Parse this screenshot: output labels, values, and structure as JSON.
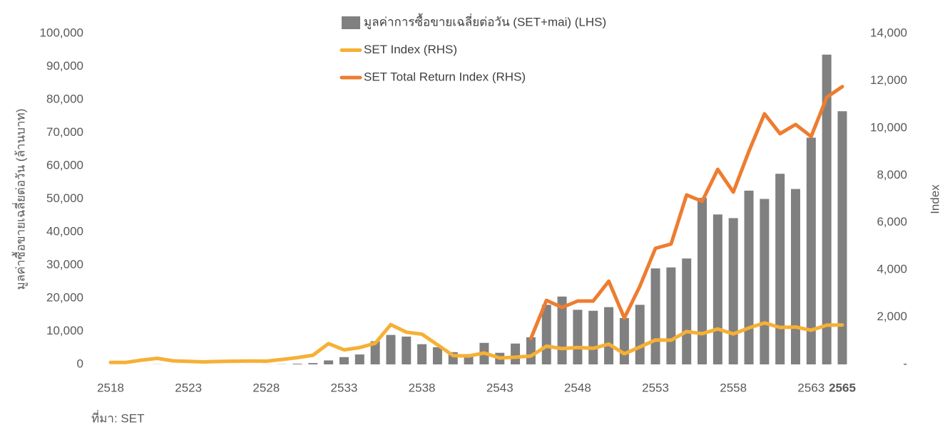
{
  "chart_data": {
    "type": "bar_line",
    "categories": [
      "2518",
      null,
      null,
      null,
      null,
      "2523",
      null,
      null,
      null,
      null,
      "2528",
      null,
      null,
      null,
      null,
      "2533",
      null,
      null,
      null,
      null,
      "2538",
      null,
      null,
      null,
      null,
      "2543",
      null,
      null,
      null,
      null,
      "2548",
      null,
      null,
      null,
      null,
      "2553",
      null,
      null,
      null,
      null,
      "2558",
      null,
      null,
      null,
      null,
      "2563",
      null,
      "2565"
    ],
    "series": [
      {
        "name": "มูลค่าการซื้อขายเฉลี่ยต่อวัน (SET+mai) (LHS)",
        "type": "bar",
        "color": "#808080",
        "values": [
          5,
          4,
          20,
          40,
          15,
          10,
          8,
          12,
          20,
          18,
          25,
          60,
          200,
          400,
          1200,
          2200,
          3000,
          7000,
          8900,
          8400,
          6100,
          5200,
          3700,
          3100,
          6500,
          3500,
          6300,
          8200,
          18000,
          20500,
          16500,
          16200,
          17300,
          14000,
          18000,
          29000,
          29300,
          32000,
          50300,
          45300,
          44200,
          52500,
          50000,
          57600,
          53000,
          68500,
          93600,
          76500
        ]
      },
      {
        "name": "SET Index (RHS)",
        "type": "line",
        "axis": "y2",
        "color": "#f6b035",
        "values": [
          85,
          83,
          180,
          257,
          150,
          125,
          105,
          124,
          135,
          142,
          135,
          207,
          285,
          387,
          879,
          613,
          711,
          893,
          1683,
          1360,
          1280,
          832,
          372,
          356,
          482,
          270,
          304,
          356,
          772,
          668,
          713,
          680,
          858,
          450,
          735,
          1033,
          1025,
          1392,
          1299,
          1498,
          1288,
          1543,
          1754,
          1564,
          1580,
          1449,
          1658,
          1669
        ]
      },
      {
        "name": "SET Total Return Index (RHS)",
        "type": "line",
        "axis": "y2",
        "color": "#ed7d31",
        "values": [
          null,
          null,
          null,
          null,
          null,
          null,
          null,
          null,
          null,
          null,
          null,
          null,
          null,
          null,
          null,
          null,
          null,
          null,
          null,
          null,
          null,
          null,
          null,
          null,
          null,
          null,
          null,
          1100,
          2710,
          2410,
          2680,
          2680,
          3520,
          1960,
          3310,
          4910,
          5090,
          7170,
          6900,
          8250,
          7290,
          9010,
          10600,
          9760,
          10150,
          9640,
          11300,
          11750
        ]
      }
    ],
    "ylabel": "มูลค่าซื้อขายเฉลี่ยต่อวัน (ล้านบาท)",
    "y2label": "Index",
    "ylim": [
      0,
      100000
    ],
    "yticks": [
      0,
      {
        "value": 10000,
        "label": "10,000"
      },
      {
        "value": 20000,
        "label": "20,000"
      },
      {
        "value": 30000,
        "label": "30,000"
      },
      {
        "value": 40000,
        "label": "40,000"
      },
      {
        "value": 50000,
        "label": "50,000"
      },
      {
        "value": 60000,
        "label": "60,000"
      },
      {
        "value": 70000,
        "label": "70,000"
      },
      {
        "value": 80000,
        "label": "80,000"
      },
      {
        "value": 90000,
        "label": "90,000"
      },
      {
        "value": 100000,
        "label": "100,000"
      }
    ],
    "y2lim": [
      0,
      14000
    ],
    "y2ticks": [
      {
        "value": 0,
        "label": "-"
      },
      {
        "value": 2000,
        "label": "2,000"
      },
      {
        "value": 4000,
        "label": "4,000"
      },
      {
        "value": 6000,
        "label": "6,000"
      },
      {
        "value": 8000,
        "label": "8,000"
      },
      {
        "value": 10000,
        "label": "10,000"
      },
      {
        "value": 12000,
        "label": "12,000"
      },
      {
        "value": 14000,
        "label": "14,000"
      }
    ],
    "source": "ที่มา: SET"
  }
}
